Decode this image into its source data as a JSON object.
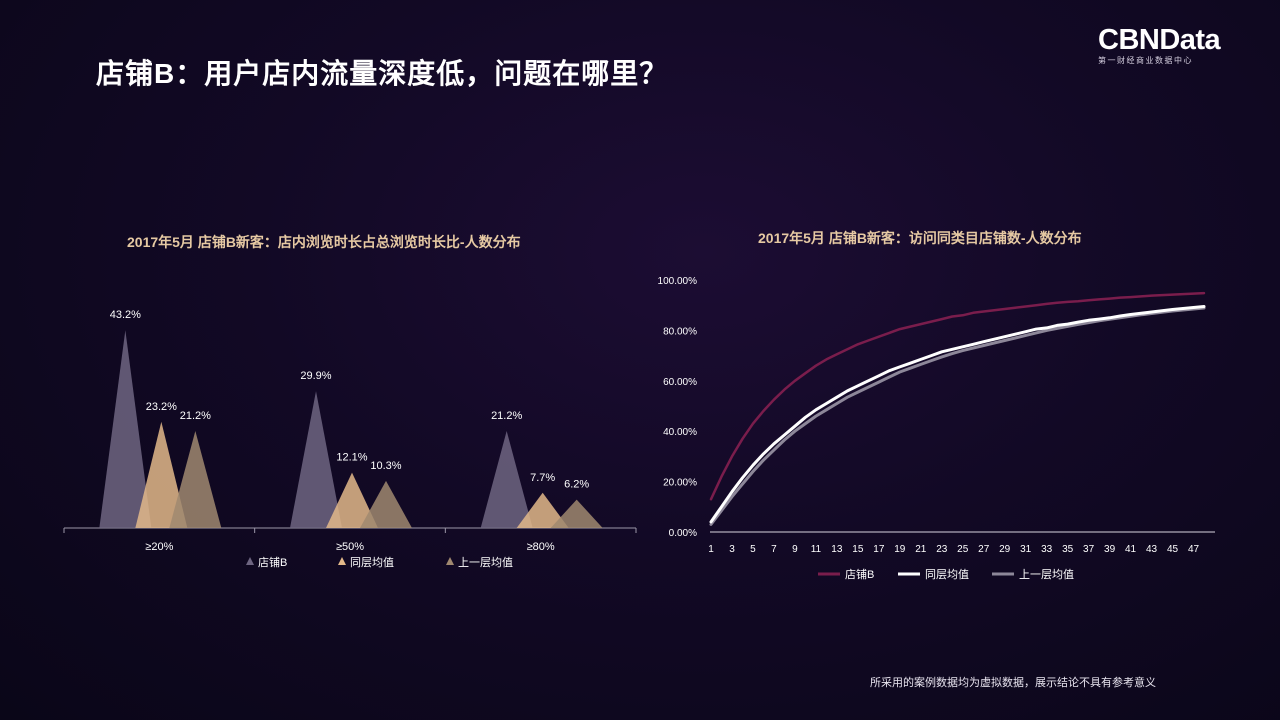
{
  "page": {
    "title": "店铺B：用户店内流量深度低，问题在哪里？",
    "logo_main": "CBNData",
    "logo_sub": "第一财经商业数据中心",
    "footnote": "所采用的案例数据均为虚拟数据，展示结论不具有参考意义"
  },
  "chart_data": [
    {
      "type": "bar",
      "title": "2017年5月 店铺B新客：店内浏览时长占总浏览时长比-人数分布",
      "categories": [
        "≥20%",
        "≥50%",
        "≥80%"
      ],
      "series": [
        {
          "name": "店铺B",
          "values": [
            43.2,
            29.9,
            21.2
          ],
          "labels": [
            "43.2%",
            "29.9%",
            "21.2%"
          ],
          "color": "#6e6581"
        },
        {
          "name": "同层均值",
          "values": [
            23.2,
            12.1,
            7.7
          ],
          "labels": [
            "23.2%",
            "12.1%",
            "7.7%"
          ],
          "color": "#e3b98a"
        },
        {
          "name": "上一层均值",
          "values": [
            21.2,
            10.3,
            6.2
          ],
          "labels": [
            "21.2%",
            "10.3%",
            "6.2%"
          ],
          "color": "#a08870"
        }
      ],
      "ylim": [
        0,
        45
      ],
      "legend": "bottom"
    },
    {
      "type": "line",
      "title": "2017年5月 店铺B新客：访问同类目店铺数-人数分布",
      "x": [
        1,
        2,
        3,
        4,
        5,
        6,
        7,
        8,
        9,
        10,
        11,
        12,
        13,
        14,
        15,
        16,
        17,
        18,
        19,
        20,
        21,
        22,
        23,
        24,
        25,
        26,
        27,
        28,
        29,
        30,
        31,
        32,
        33,
        34,
        35,
        36,
        37,
        38,
        39,
        40,
        41,
        42,
        43,
        44,
        45,
        46,
        47,
        48
      ],
      "x_tick_labels": [
        "1",
        "3",
        "5",
        "7",
        "9",
        "11",
        "13",
        "15",
        "17",
        "19",
        "21",
        "23",
        "25",
        "27",
        "29",
        "31",
        "33",
        "35",
        "37",
        "39",
        "41",
        "43",
        "45",
        "47"
      ],
      "y_tick_labels": [
        "0.00%",
        "20.00%",
        "40.00%",
        "60.00%",
        "80.00%",
        "100.00%"
      ],
      "ylim": [
        0,
        100
      ],
      "series": [
        {
          "name": "店铺B",
          "color": "#7a1d4c",
          "values": [
            13,
            22,
            30,
            37,
            43,
            48,
            52.5,
            56.5,
            60,
            63,
            66,
            68.5,
            70.5,
            72.5,
            74.5,
            76,
            77.5,
            79,
            80.5,
            81.5,
            82.5,
            83.5,
            84.5,
            85.5,
            86,
            87,
            87.5,
            88,
            88.5,
            89,
            89.5,
            90,
            90.5,
            91,
            91.3,
            91.6,
            92,
            92.3,
            92.6,
            93,
            93.2,
            93.5,
            93.8,
            94,
            94.2,
            94.4,
            94.6,
            94.8
          ]
        },
        {
          "name": "同层均值",
          "color": "#ffffff",
          "values": [
            4,
            10,
            16,
            21.5,
            26.5,
            31,
            35,
            38.5,
            42,
            45.5,
            48.5,
            51,
            53.5,
            56,
            58,
            60,
            62,
            64,
            65.5,
            67,
            68.5,
            70,
            71.5,
            72.5,
            73.5,
            74.5,
            75.5,
            76.5,
            77.5,
            78.5,
            79.5,
            80.5,
            81,
            82,
            82.5,
            83.3,
            84,
            84.5,
            85,
            85.7,
            86.3,
            86.8,
            87.3,
            87.8,
            88.3,
            88.7,
            89.1,
            89.5
          ]
        },
        {
          "name": "上一层均值",
          "color": "#8d8799",
          "values": [
            3,
            8.5,
            14,
            19,
            24,
            28.5,
            32.5,
            36.5,
            40,
            43,
            46,
            48.5,
            51,
            53.5,
            55.5,
            57.5,
            59.5,
            61.5,
            63.5,
            65,
            66.5,
            68,
            69.5,
            70.8,
            72,
            73,
            74,
            75,
            76,
            77,
            78,
            79,
            80,
            80.8,
            81.6,
            82.4,
            83.1,
            83.8,
            84.4,
            85,
            85.6,
            86.2,
            86.7,
            87.2,
            87.7,
            88.1,
            88.5,
            88.9
          ]
        }
      ],
      "legend": "bottom"
    }
  ]
}
